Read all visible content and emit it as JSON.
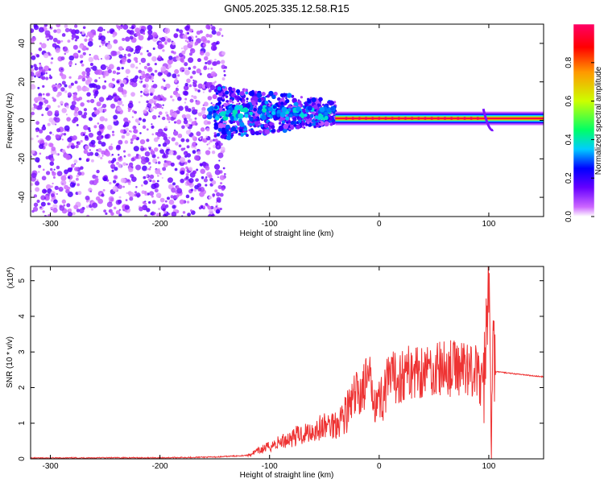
{
  "figure": {
    "title": "GN05.2025.335.12.58.R15"
  },
  "chart_data": [
    {
      "type": "heatmap",
      "xlabel": "Height of straight line (km)",
      "ylabel": "Frequency (Hz)",
      "xlim": [
        -318,
        150
      ],
      "ylim": [
        -50,
        50
      ],
      "xticks": [
        -300,
        -200,
        -100,
        0,
        100
      ],
      "yticks": [
        -40,
        -20,
        0,
        20,
        40
      ],
      "colorbar": {
        "label": "Normalized spectral amplitude",
        "range": [
          0,
          1
        ],
        "ticks": [
          0.0,
          0.2,
          0.4,
          0.6,
          0.8
        ],
        "tick_labels": [
          "0.0",
          "0.2",
          "0.4",
          "0.6",
          "0.8"
        ],
        "colors": [
          "#ffffff",
          "#cc66ff",
          "#6600ff",
          "#0000ff",
          "#00ccff",
          "#00ff66",
          "#ccff00",
          "#ff9900",
          "#ff0000",
          "#ff0066"
        ]
      },
      "regions": [
        {
          "x_range": [
            -318,
            -150
          ],
          "description_level": "scattered noise",
          "amplitude": 0.15
        },
        {
          "x_range": [
            -150,
            -40
          ],
          "center_hz": 3,
          "amplitude": 0.4
        },
        {
          "x_range": [
            -40,
            95
          ],
          "center_hz": 0,
          "amplitude": 0.95
        },
        {
          "x_range": [
            95,
            150
          ],
          "center_hz": 0,
          "amplitude": 0.6
        }
      ]
    },
    {
      "type": "line",
      "xlabel": "Height of straight line (km)",
      "ylabel": "SNR (10 * v/v)",
      "yscale_label": "(x10",
      "yscale_exp": "4",
      "xlim": [
        -318,
        150
      ],
      "ylim": [
        0,
        5.4
      ],
      "xticks": [
        -300,
        -200,
        -100,
        0,
        100
      ],
      "yticks": [
        0,
        1,
        2,
        3,
        4,
        5
      ],
      "color": "#ee3333",
      "series": [
        {
          "x": [
            -318,
            -250,
            -200,
            -150,
            -120,
            -100,
            -80,
            -60,
            -40,
            -30,
            -20,
            -10,
            0,
            10,
            20,
            30,
            40,
            50,
            60,
            70,
            80,
            90,
            95,
            98,
            100,
            102,
            104,
            106,
            120,
            135,
            150
          ],
          "values": [
            0.02,
            0.03,
            0.03,
            0.05,
            0.1,
            0.35,
            0.6,
            0.8,
            1.0,
            1.3,
            1.8,
            2.2,
            1.6,
            2.2,
            2.35,
            2.45,
            2.5,
            2.5,
            2.52,
            2.55,
            2.6,
            2.4,
            1.8,
            3.8,
            5.3,
            0.5,
            3.0,
            2.45,
            2.4,
            2.35,
            2.3
          ]
        }
      ]
    }
  ]
}
